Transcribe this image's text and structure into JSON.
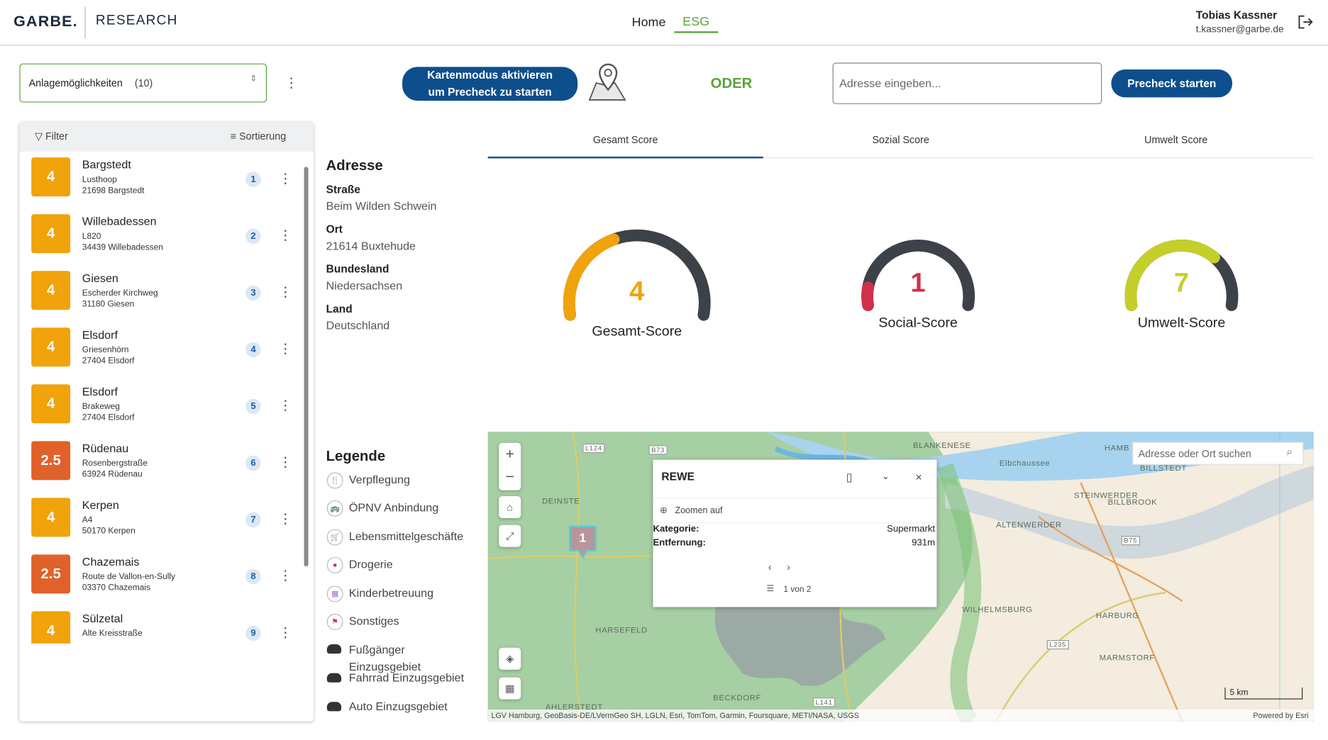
{
  "header": {
    "logo": "GARBE.",
    "product": "RESEARCH",
    "nav": [
      "Home",
      "ESG"
    ],
    "user_name": "Tobias Kassner",
    "user_email": "t.kassner@garbe.de"
  },
  "toolbar": {
    "select_label": "Anlagemöglichkeiten",
    "select_count": "(10)",
    "map_button": "Kartenmodus aktivieren um Precheck zu starten",
    "or": "ODER",
    "address_placeholder": "Adresse eingeben...",
    "precheck_button": "Precheck starten"
  },
  "list": {
    "filter": "Filter",
    "sort": "Sortierung",
    "items": [
      {
        "score": 4,
        "name": "Bargstedt",
        "street": "Lusthoop",
        "city": "21698 Bargstedt",
        "rank": "1"
      },
      {
        "score": 4,
        "name": "Willebadessen",
        "street": "L820",
        "city": "34439 Willebadessen",
        "rank": "2"
      },
      {
        "score": 4,
        "name": "Giesen",
        "street": "Escherder Kirchweg",
        "city": "31180 Giesen",
        "rank": "3"
      },
      {
        "score": 4,
        "name": "Elsdorf",
        "street": "Griesenhörn",
        "city": "27404 Elsdorf",
        "rank": "4"
      },
      {
        "score": 4,
        "name": "Elsdorf",
        "street": "Brakeweg",
        "city": "27404 Elsdorf",
        "rank": "5"
      },
      {
        "score": 2.5,
        "name": "Rüdenau",
        "street": "Rosenbergstraße",
        "city": "63924 Rüdenau",
        "rank": "6"
      },
      {
        "score": 4,
        "name": "Kerpen",
        "street": "A4",
        "city": "50170 Kerpen",
        "rank": "7"
      },
      {
        "score": 2.5,
        "name": "Chazemais",
        "street": "Route de Vallon-en-Sully",
        "city": "03370 Chazemais",
        "rank": "8"
      },
      {
        "score": 4,
        "name": "Sülzetal",
        "street": "Alte Kreisstraße",
        "rank": "9"
      }
    ]
  },
  "address": {
    "heading": "Adresse",
    "fields": [
      {
        "label": "Straße",
        "value": "Beim Wilden Schwein"
      },
      {
        "label": "Ort",
        "value": "21614 Buxtehude"
      },
      {
        "label": "Bundesland",
        "value": "Niedersachsen"
      },
      {
        "label": "Land",
        "value": "Deutschland"
      }
    ]
  },
  "tabs": [
    "Gesamt Score",
    "Sozial Score",
    "Umwelt Score"
  ],
  "gauges": {
    "range": [
      0,
      10
    ],
    "items": [
      {
        "value": 4,
        "label": "Gesamt-Score",
        "color": "#f0a30a"
      },
      {
        "value": 1,
        "label": "Social-Score",
        "color": "#d0304a"
      },
      {
        "value": 7,
        "label": "Umwelt-Score",
        "color": "#c4cf2a"
      }
    ]
  },
  "legend": {
    "heading": "Legende",
    "items": [
      "Verpflegung",
      "ÖPNV Anbindung",
      "Lebensmittelgeschäfte",
      "Drogerie",
      "Kinderbetreuung",
      "Sonstiges",
      "Fußgänger Einzugsgebiet",
      "Fahrrad Einzugsgebiet",
      "Auto Einzugsgebiet"
    ]
  },
  "map": {
    "search_placeholder": "Adresse oder Ort suchen",
    "marker": "1",
    "popup": {
      "title": "REWE",
      "zoom": "Zoomen auf",
      "rows": [
        {
          "label": "Kategorie:",
          "value": "Supermarkt"
        },
        {
          "label": "Entfernung:",
          "value": "931m"
        }
      ],
      "pager": "1 von 2"
    },
    "places": [
      "DEINSTE",
      "HARSEFELD",
      "BECKDORF",
      "AHLERSTEDT",
      "BLANKENESE",
      "Elbchaussee",
      "HAMB",
      "BILLSTEDT",
      "STEINWERDER",
      "BILLBROOK",
      "ALTENWERDER",
      "HARBURG",
      "MARMSTORF",
      "WILHELMSBURG",
      "L124",
      "B73",
      "B75",
      "L235",
      "L141"
    ],
    "scale": "5 km",
    "attribution": "LGV Hamburg, GeoBasis-DE/LVermGeo SH, LGLN, Esri, TomTom, Garmin, Foursquare, METI/NASA, USGS",
    "powered": "Powered by Esri"
  }
}
